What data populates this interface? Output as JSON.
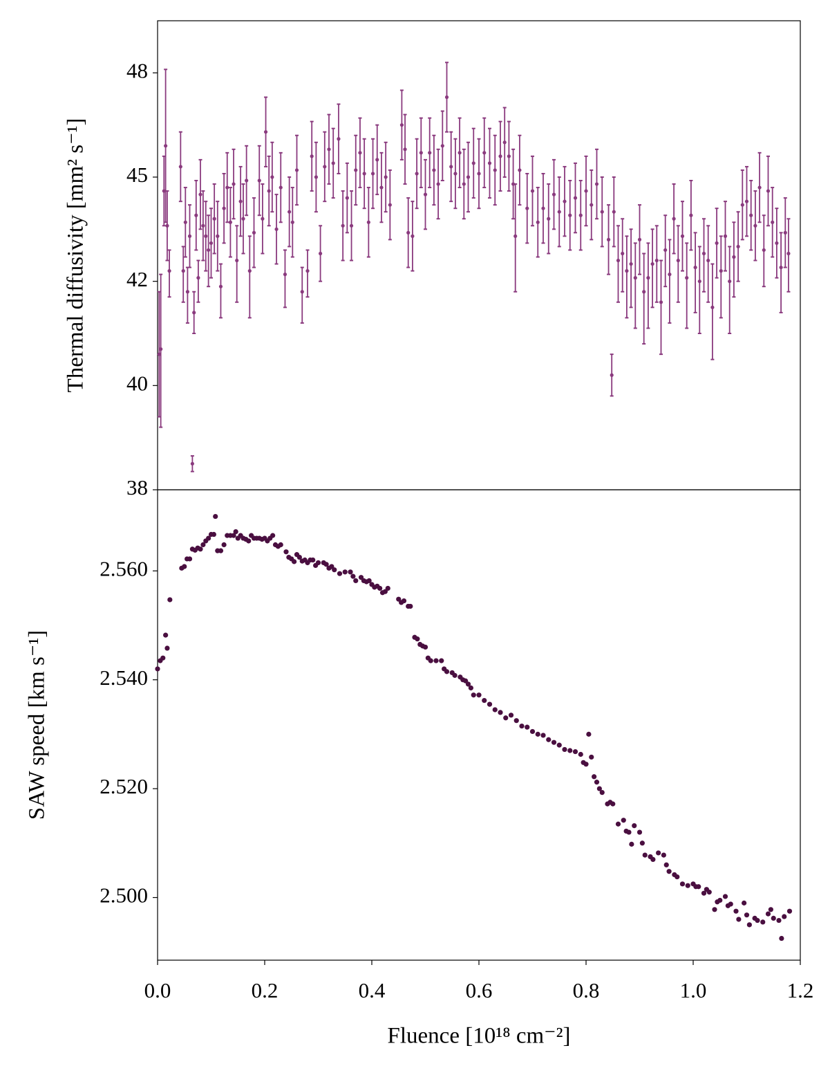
{
  "chart_data": [
    {
      "type": "errorbar",
      "ylabel": "Thermal diffusivity [mm² s⁻¹]",
      "color": "#8a3a7e",
      "xlim": [
        0,
        1.2
      ],
      "ylim": [
        38,
        49.5
      ],
      "yticks": [
        38,
        40,
        42,
        45,
        48
      ],
      "x": [
        0.003,
        0.006,
        0.012,
        0.015,
        0.018,
        0.022,
        0.043,
        0.048,
        0.052,
        0.056,
        0.06,
        0.065,
        0.068,
        0.072,
        0.076,
        0.08,
        0.085,
        0.09,
        0.095,
        0.1,
        0.106,
        0.112,
        0.118,
        0.124,
        0.13,
        0.136,
        0.142,
        0.148,
        0.155,
        0.16,
        0.166,
        0.172,
        0.18,
        0.19,
        0.196,
        0.202,
        0.208,
        0.214,
        0.222,
        0.23,
        0.238,
        0.246,
        0.252,
        0.26,
        0.27,
        0.28,
        0.288,
        0.296,
        0.304,
        0.312,
        0.32,
        0.328,
        0.338,
        0.346,
        0.354,
        0.362,
        0.37,
        0.378,
        0.386,
        0.394,
        0.402,
        0.41,
        0.418,
        0.426,
        0.434,
        0.456,
        0.462,
        0.468,
        0.476,
        0.484,
        0.492,
        0.5,
        0.508,
        0.516,
        0.524,
        0.532,
        0.54,
        0.548,
        0.556,
        0.564,
        0.572,
        0.58,
        0.59,
        0.6,
        0.61,
        0.62,
        0.63,
        0.64,
        0.648,
        0.656,
        0.664,
        0.668,
        0.676,
        0.69,
        0.7,
        0.71,
        0.72,
        0.73,
        0.74,
        0.75,
        0.76,
        0.77,
        0.78,
        0.79,
        0.8,
        0.81,
        0.82,
        0.83,
        0.842,
        0.848,
        0.852,
        0.86,
        0.868,
        0.876,
        0.884,
        0.892,
        0.9,
        0.908,
        0.916,
        0.924,
        0.932,
        0.94,
        0.948,
        0.956,
        0.964,
        0.972,
        0.98,
        0.988,
        0.996,
        1.004,
        1.012,
        1.02,
        1.028,
        1.036,
        1.044,
        1.052,
        1.06,
        1.068,
        1.076,
        1.084,
        1.092,
        1.1,
        1.108,
        1.116,
        1.124,
        1.132,
        1.14,
        1.148,
        1.156,
        1.164,
        1.172,
        1.178
      ],
      "values": [
        40.6,
        40.7,
        44.6,
        45.9,
        43.6,
        42.3,
        45.3,
        42.3,
        43.7,
        41.8,
        43.3,
        38.5,
        41.4,
        43.9,
        42.1,
        44.5,
        43.6,
        43.3,
        42.9,
        43.1,
        43.8,
        43.3,
        41.9,
        44.1,
        44.7,
        43.7,
        44.8,
        42.6,
        44.3,
        43.8,
        44.9,
        42.3,
        43.4,
        44.9,
        43.8,
        46.3,
        44.6,
        45.0,
        43.5,
        44.7,
        42.2,
        44.0,
        43.7,
        45.2,
        41.8,
        42.3,
        45.6,
        45.0,
        42.8,
        45.3,
        45.8,
        45.4,
        46.1,
        43.6,
        44.4,
        43.6,
        45.2,
        45.7,
        45.1,
        43.7,
        45.1,
        45.5,
        44.7,
        45.0,
        44.2,
        46.5,
        45.8,
        43.4,
        43.3,
        45.1,
        45.7,
        44.5,
        45.7,
        45.2,
        44.8,
        45.9,
        47.3,
        45.3,
        45.1,
        45.7,
        44.8,
        45.0,
        45.4,
        45.1,
        45.7,
        45.4,
        45.2,
        45.6,
        46.0,
        45.6,
        44.8,
        43.3,
        45.2,
        44.1,
        44.6,
        43.7,
        44.1,
        43.8,
        44.5,
        44.0,
        44.3,
        43.9,
        44.4,
        43.9,
        44.6,
        44.2,
        44.8,
        44.0,
        43.2,
        40.2,
        44.0,
        42.6,
        42.8,
        42.3,
        42.5,
        42.1,
        43.2,
        41.8,
        42.1,
        42.5,
        42.6,
        41.6,
        42.9,
        42.2,
        43.8,
        42.6,
        43.3,
        42.1,
        43.9,
        42.4,
        42.0,
        42.8,
        42.6,
        41.5,
        43.1,
        42.3,
        43.3,
        42.0,
        42.7,
        43.0,
        44.2,
        44.3,
        43.9,
        43.6,
        44.7,
        42.9,
        44.6,
        43.7,
        43.1,
        42.4,
        43.4,
        42.8
      ],
      "errors": [
        1.2,
        1.5,
        1.0,
        2.2,
        1.0,
        0.6,
        1.0,
        0.7,
        1.0,
        0.6,
        0.9,
        0.15,
        0.4,
        1.0,
        0.5,
        1.0,
        1.0,
        1.0,
        1.0,
        1.0,
        1.0,
        1.0,
        0.6,
        1.0,
        1.0,
        1.0,
        1.0,
        1.0,
        1.0,
        1.0,
        1.0,
        1.0,
        1.0,
        1.0,
        1.0,
        1.0,
        1.0,
        1.0,
        1.0,
        1.0,
        0.7,
        1.0,
        1.0,
        1.0,
        0.6,
        0.6,
        1.0,
        1.0,
        0.8,
        1.0,
        1.0,
        1.0,
        1.0,
        1.0,
        1.0,
        1.0,
        1.0,
        1.0,
        1.0,
        1.0,
        1.0,
        1.0,
        1.0,
        1.0,
        1.0,
        1.0,
        1.0,
        1.0,
        1.0,
        1.0,
        1.0,
        1.0,
        1.0,
        1.0,
        1.0,
        1.0,
        1.0,
        1.0,
        1.0,
        1.0,
        1.0,
        1.0,
        1.0,
        1.0,
        1.0,
        1.0,
        1.0,
        1.0,
        1.0,
        1.0,
        1.0,
        1.5,
        1.0,
        1.0,
        1.0,
        1.0,
        1.0,
        1.0,
        1.0,
        1.0,
        1.0,
        1.0,
        1.0,
        1.0,
        1.0,
        1.0,
        1.0,
        1.0,
        1.0,
        0.4,
        1.0,
        1.0,
        1.0,
        1.0,
        1.0,
        1.0,
        1.0,
        1.0,
        1.0,
        1.0,
        1.0,
        1.0,
        1.0,
        1.0,
        1.0,
        1.0,
        1.0,
        1.0,
        1.0,
        1.0,
        1.0,
        1.0,
        1.0,
        1.0,
        1.0,
        1.0,
        1.0,
        1.0,
        1.0,
        1.0,
        1.0,
        1.0,
        1.0,
        1.0,
        1.0,
        1.0,
        1.0,
        1.0,
        1.0,
        1.0,
        1.0,
        1.0
      ]
    },
    {
      "type": "scatter",
      "ylabel": "SAW speed [km s⁻¹]",
      "xlabel": "Fluence [10¹⁸ cm⁻²]",
      "color": "#4a0f40",
      "xlim": [
        0,
        1.2
      ],
      "ylim": [
        2.4885,
        2.5749
      ],
      "xticks": [
        {
          "value": 0,
          "label": "0.0"
        },
        0.2,
        0.4,
        0.6,
        0.8,
        {
          "value": 1,
          "label": "1.0"
        },
        1.2
      ],
      "yticks": [
        {
          "value": 2.5,
          "label": "2.500"
        },
        {
          "value": 2.52,
          "label": "2.520"
        },
        {
          "value": 2.54,
          "label": "2.540"
        },
        {
          "value": 2.56,
          "label": "2.560"
        }
      ],
      "x": [
        0.0,
        0.005,
        0.01,
        0.015,
        0.018,
        0.023,
        0.045,
        0.05,
        0.055,
        0.06,
        0.065,
        0.07,
        0.075,
        0.08,
        0.085,
        0.09,
        0.095,
        0.1,
        0.105,
        0.108,
        0.112,
        0.118,
        0.124,
        0.13,
        0.136,
        0.142,
        0.146,
        0.15,
        0.155,
        0.16,
        0.165,
        0.17,
        0.175,
        0.18,
        0.185,
        0.19,
        0.195,
        0.2,
        0.205,
        0.21,
        0.215,
        0.22,
        0.225,
        0.23,
        0.24,
        0.245,
        0.25,
        0.255,
        0.26,
        0.265,
        0.27,
        0.275,
        0.28,
        0.285,
        0.29,
        0.295,
        0.3,
        0.31,
        0.315,
        0.32,
        0.325,
        0.33,
        0.34,
        0.35,
        0.36,
        0.365,
        0.37,
        0.38,
        0.385,
        0.39,
        0.395,
        0.4,
        0.405,
        0.41,
        0.415,
        0.42,
        0.425,
        0.43,
        0.45,
        0.455,
        0.46,
        0.468,
        0.472,
        0.48,
        0.485,
        0.49,
        0.495,
        0.5,
        0.505,
        0.51,
        0.52,
        0.53,
        0.535,
        0.54,
        0.55,
        0.555,
        0.565,
        0.57,
        0.575,
        0.58,
        0.585,
        0.59,
        0.6,
        0.61,
        0.62,
        0.63,
        0.64,
        0.65,
        0.66,
        0.67,
        0.68,
        0.69,
        0.7,
        0.71,
        0.72,
        0.73,
        0.74,
        0.75,
        0.76,
        0.77,
        0.78,
        0.79,
        0.795,
        0.8,
        0.805,
        0.81,
        0.815,
        0.82,
        0.825,
        0.83,
        0.84,
        0.845,
        0.85,
        0.86,
        0.87,
        0.875,
        0.88,
        0.885,
        0.89,
        0.9,
        0.905,
        0.91,
        0.92,
        0.925,
        0.935,
        0.945,
        0.95,
        0.955,
        0.965,
        0.97,
        0.98,
        0.99,
        1.0,
        1.005,
        1.01,
        1.02,
        1.025,
        1.03,
        1.04,
        1.045,
        1.05,
        1.06,
        1.065,
        1.07,
        1.08,
        1.085,
        1.095,
        1.1,
        1.105,
        1.115,
        1.12,
        1.13,
        1.14,
        1.145,
        1.15,
        1.16,
        1.165,
        1.17,
        1.18
      ],
      "values": [
        2.542,
        2.5435,
        2.544,
        2.5482,
        2.5458,
        2.5547,
        2.5605,
        2.5608,
        2.5622,
        2.5622,
        2.564,
        2.5638,
        2.5642,
        2.564,
        2.5648,
        2.5655,
        2.566,
        2.5667,
        2.5667,
        2.57,
        2.5637,
        2.5637,
        2.5648,
        2.5665,
        2.5665,
        2.5665,
        2.5672,
        2.566,
        2.5665,
        2.566,
        2.5658,
        2.5655,
        2.5665,
        2.566,
        2.566,
        2.566,
        2.5658,
        2.566,
        2.5655,
        2.566,
        2.5665,
        2.5648,
        2.5645,
        2.5648,
        2.5635,
        2.5625,
        2.5622,
        2.5617,
        2.563,
        2.5625,
        2.5618,
        2.562,
        2.5615,
        2.562,
        2.562,
        2.561,
        2.5615,
        2.5615,
        2.5612,
        2.5605,
        2.5608,
        2.5602,
        2.5595,
        2.5598,
        2.5598,
        2.559,
        2.5582,
        2.5588,
        2.5582,
        2.558,
        2.5582,
        2.5575,
        2.557,
        2.5572,
        2.5568,
        2.556,
        2.5562,
        2.5568,
        2.5548,
        2.5542,
        2.5545,
        2.5535,
        2.5535,
        2.5478,
        2.5475,
        2.5465,
        2.5462,
        2.546,
        2.544,
        2.5435,
        2.5435,
        2.5435,
        2.542,
        2.5415,
        2.5413,
        2.5408,
        2.5405,
        2.54,
        2.5398,
        2.5392,
        2.5385,
        2.5372,
        2.5372,
        2.5362,
        2.5355,
        2.5345,
        2.534,
        2.533,
        2.5335,
        2.5325,
        2.5315,
        2.5313,
        2.5305,
        2.53,
        2.5298,
        2.529,
        2.5285,
        2.528,
        2.5272,
        2.527,
        2.5268,
        2.5263,
        2.5248,
        2.5245,
        2.53,
        2.5258,
        2.5222,
        2.5212,
        2.52,
        2.5193,
        2.5172,
        2.5175,
        2.5172,
        2.5135,
        2.5142,
        2.5122,
        2.512,
        2.5098,
        2.5132,
        2.512,
        2.51,
        2.5078,
        2.5075,
        2.507,
        2.5082,
        2.5078,
        2.506,
        2.5048,
        2.5042,
        2.5038,
        2.5025,
        2.5022,
        2.5025,
        2.502,
        2.502,
        2.5008,
        2.5015,
        2.501,
        2.4978,
        2.4992,
        2.4995,
        2.5002,
        2.4985,
        2.4988,
        2.4975,
        2.496,
        2.499,
        2.4968,
        2.495,
        2.4962,
        2.4958,
        2.4955,
        2.497,
        2.4978,
        2.4962,
        2.4958,
        2.4925,
        2.4965,
        2.4975
      ]
    }
  ]
}
